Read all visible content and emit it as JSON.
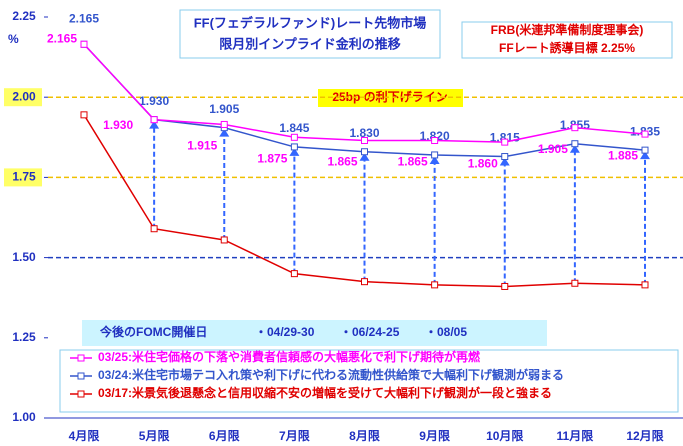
{
  "chart_data": {
    "type": "line",
    "title": [
      "FF(フェデラルファンド)レート先物市場",
      "限月別インプライド金利の推移"
    ],
    "note_box": [
      "FRB(米連邦準備制度理事会)",
      "FFレート誘導目標 2.25%"
    ],
    "y_unit": "%",
    "reference_label": "25bp の利下げライン",
    "fomc": {
      "title": "今後のFOMC開催日",
      "dates": [
        "・04/29-30",
        "・06/24-25",
        "・08/05"
      ]
    },
    "categories": [
      "4月限",
      "5月限",
      "6月限",
      "7月限",
      "8月限",
      "9月限",
      "10月限",
      "11月限",
      "12月限"
    ],
    "series": [
      {
        "name": "03/25:米住宅価格の下落や消費者信頼感の大幅悪化で利下げ期待が再燃",
        "color": "#ff00ff",
        "values": [
          2.165,
          1.93,
          1.915,
          1.875,
          1.865,
          1.865,
          1.86,
          1.905,
          1.885
        ],
        "value_labels": [
          "2.165",
          "1.930",
          "1.915",
          "1.875",
          "1.865",
          "1.865",
          "1.860",
          "1.905",
          "1.885"
        ]
      },
      {
        "name": "03/24:米住宅市場テコ入れ策や利下げに代わる流動性供給策で大幅利下げ観測が弱まる",
        "color": "#3355cc",
        "values": [
          2.165,
          1.93,
          1.905,
          1.845,
          1.83,
          1.82,
          1.815,
          1.855,
          1.835
        ],
        "value_labels": [
          "2.165",
          "1.930",
          "1.905",
          "1.845",
          "1.830",
          "1.820",
          "1.815",
          "1.855",
          "1.835"
        ]
      },
      {
        "name": "03/17:米景気後退懸念と信用収縮不安の増幅を受けて大幅利下げ観測が一段と強まる",
        "color": "#e00000",
        "values": [
          1.945,
          1.59,
          1.555,
          1.45,
          1.425,
          1.415,
          1.41,
          1.42,
          1.415
        ]
      }
    ],
    "ylim": [
      1,
      2.25
    ],
    "yticks": [
      {
        "value": 1,
        "label": "1.00"
      },
      1.25,
      {
        "value": 1.5,
        "label": "1.50"
      },
      1.75,
      {
        "value": 2,
        "label": "2.00"
      },
      2.25
    ],
    "hlines": [
      {
        "value": 2,
        "color": "#f0c000"
      },
      {
        "value": 1.75,
        "color": "#f0c000"
      },
      {
        "value": 1.5,
        "color": "#2040c0"
      }
    ]
  }
}
